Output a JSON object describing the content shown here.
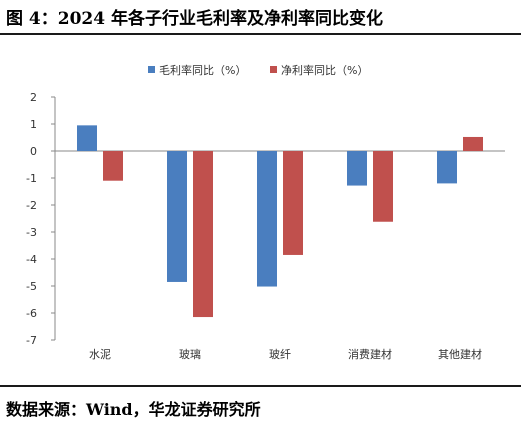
{
  "figure": {
    "title": "图 4：2024 年各子行业毛利率及净利率同比变化",
    "source": "数据来源：Wind，华龙证券研究所"
  },
  "chart_data": {
    "type": "bar",
    "categories": [
      "水泥",
      "玻璃",
      "玻纤",
      "消费建材",
      "其他建材"
    ],
    "series": [
      {
        "name": "毛利率同比（%）",
        "color": "#4a7ebf",
        "values": [
          0.95,
          -4.85,
          -5.02,
          -1.28,
          -1.2
        ]
      },
      {
        "name": "净利率同比（%）",
        "color": "#c0504d",
        "values": [
          -1.1,
          -6.15,
          -3.85,
          -2.62,
          0.52
        ]
      }
    ],
    "ylim": [
      -7,
      2
    ],
    "yticks": [
      2,
      1,
      0,
      -1,
      -2,
      -3,
      -4,
      -5,
      -6,
      -7
    ],
    "legend_position": "top-center",
    "grid": false
  }
}
